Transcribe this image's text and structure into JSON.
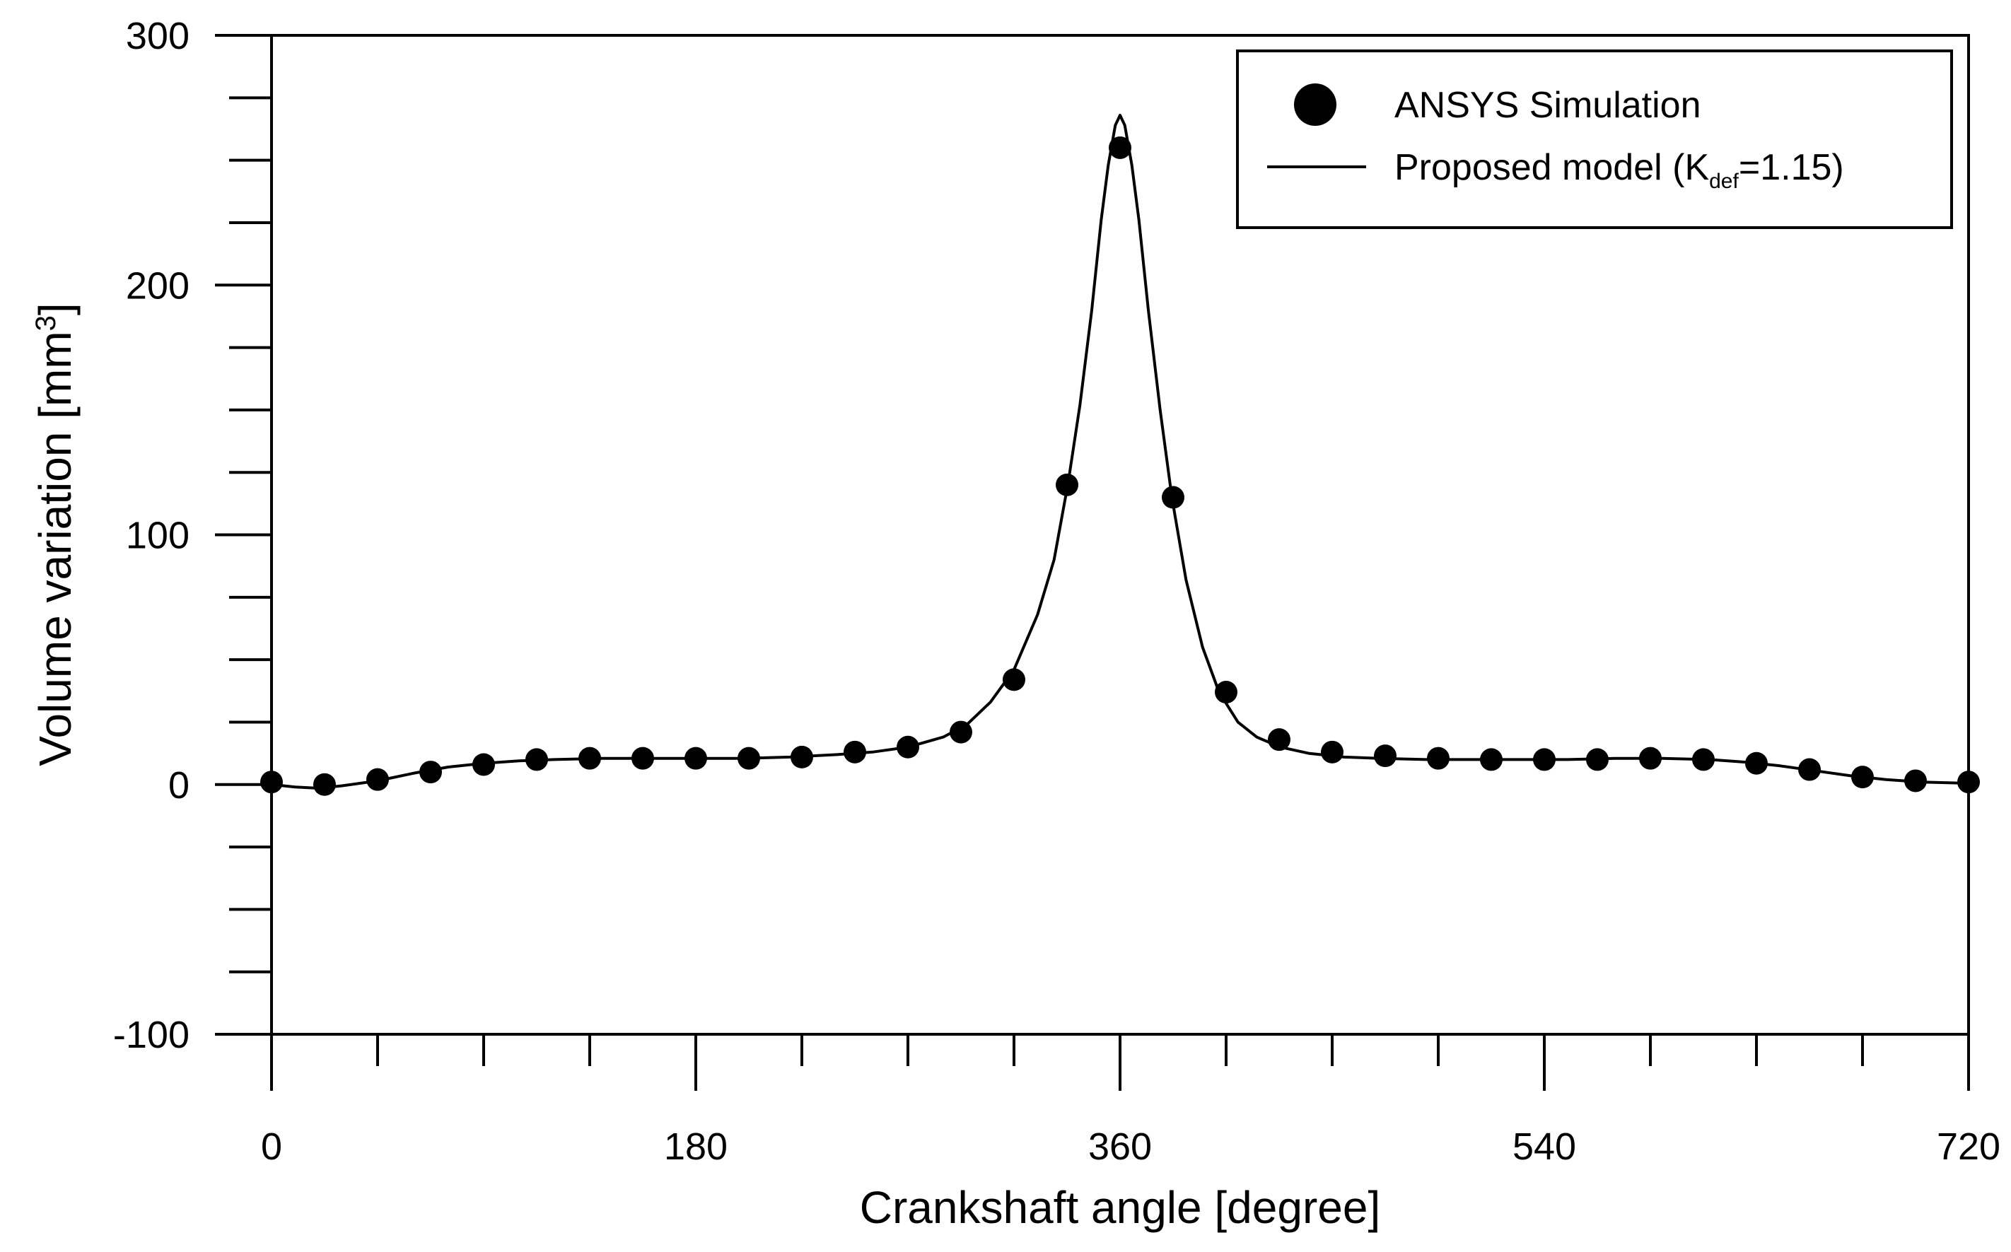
{
  "chart_data": {
    "type": "scatter",
    "title": "",
    "xlabel": "Crankshaft angle [degree]",
    "ylabel": {
      "main": "Volume variation [mm",
      "sup": "3",
      "close": "]"
    },
    "xlim": [
      0,
      720
    ],
    "ylim": [
      -100,
      300
    ],
    "x_ticks": [
      0,
      180,
      360,
      540,
      720
    ],
    "x_minor_ticks": [
      0,
      45,
      90,
      135,
      180,
      225,
      270,
      315,
      360,
      405,
      450,
      495,
      540,
      585,
      630,
      675,
      720
    ],
    "y_ticks": [
      -100,
      0,
      100,
      200,
      300
    ],
    "y_minor_ticks": [
      -100,
      -75,
      -50,
      -25,
      0,
      25,
      50,
      75,
      100,
      125,
      150,
      175,
      200,
      225,
      250,
      275,
      300
    ],
    "grid": false,
    "legend_position": "top-right",
    "series": [
      {
        "name": "ANSYS Simulation",
        "kind": "markers",
        "x": [
          0,
          22.5,
          45,
          67.5,
          90,
          112.5,
          135,
          157.5,
          180,
          202.5,
          225,
          247.5,
          270,
          292.5,
          315,
          337.5,
          360,
          382.5,
          405,
          427.5,
          450,
          472.5,
          495,
          517.5,
          540,
          562.5,
          585,
          607.5,
          630,
          652.5,
          675,
          697.5,
          720
        ],
        "y": [
          1,
          0,
          2,
          5,
          8,
          10,
          10.5,
          10.5,
          10.5,
          10.5,
          11,
          13,
          15,
          21,
          42,
          120,
          255,
          115,
          37,
          18,
          13,
          11.5,
          10.5,
          10,
          10,
          10,
          10.5,
          10,
          8.5,
          6,
          3,
          1.5,
          1
        ]
      },
      {
        "name": "Proposed model (K",
        "subscript": "def",
        "name_suffix": "=1.15)",
        "kind": "line",
        "x": [
          0,
          10,
          20,
          30,
          45,
          60,
          75,
          90,
          105,
          120,
          140,
          160,
          180,
          200,
          220,
          240,
          255,
          270,
          285,
          295,
          305,
          315,
          325,
          332,
          338,
          343,
          348,
          352,
          355,
          358,
          360,
          362,
          365,
          368,
          372,
          377,
          382,
          388,
          395,
          402,
          410,
          418,
          428,
          440,
          455,
          470,
          490,
          510,
          530,
          550,
          570,
          590,
          610,
          625,
          640,
          655,
          670,
          685,
          700,
          720
        ],
        "y": [
          0,
          -1,
          -1.5,
          -0.5,
          1.5,
          4.5,
          7,
          8.5,
          9.5,
          10,
          10.5,
          10.5,
          10.5,
          10.5,
          11,
          12,
          13,
          15,
          19,
          24,
          33,
          46,
          68,
          90,
          121,
          152,
          190,
          226,
          248,
          264,
          268,
          264,
          248,
          226,
          190,
          150,
          115,
          82,
          55,
          37,
          25,
          19,
          15,
          12.5,
          11,
          10.5,
          10,
          10,
          10,
          10,
          10.5,
          10.5,
          10,
          9,
          7.5,
          5.5,
          3.5,
          2,
          1,
          0.5
        ]
      }
    ]
  }
}
